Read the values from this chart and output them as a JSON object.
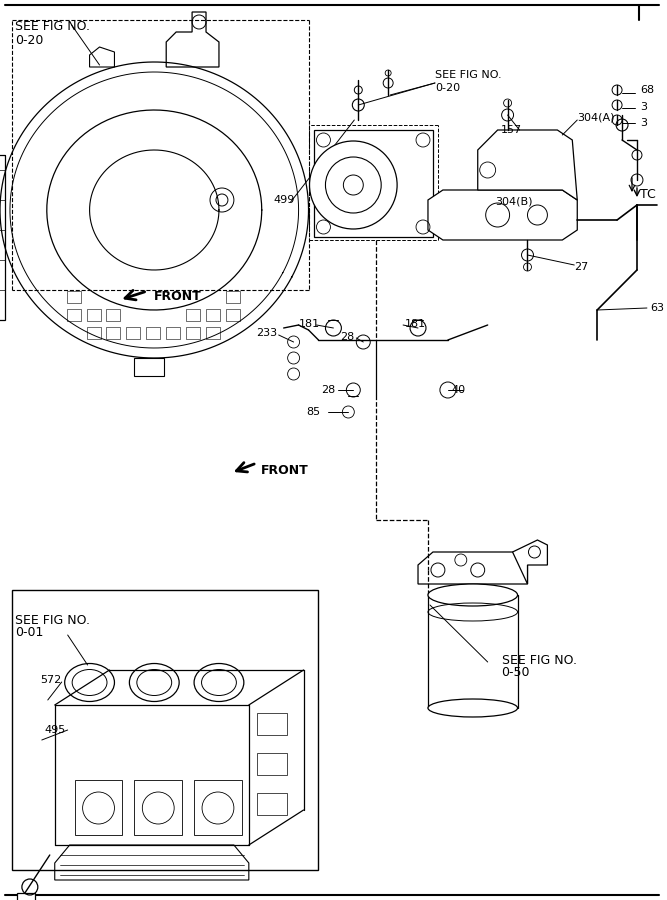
{
  "bg_color": "#ffffff",
  "line_color": "#000000",
  "figsize": [
    6.67,
    9.0
  ],
  "dpi": 100,
  "xlim": [
    0,
    667
  ],
  "ylim": [
    0,
    900
  ]
}
